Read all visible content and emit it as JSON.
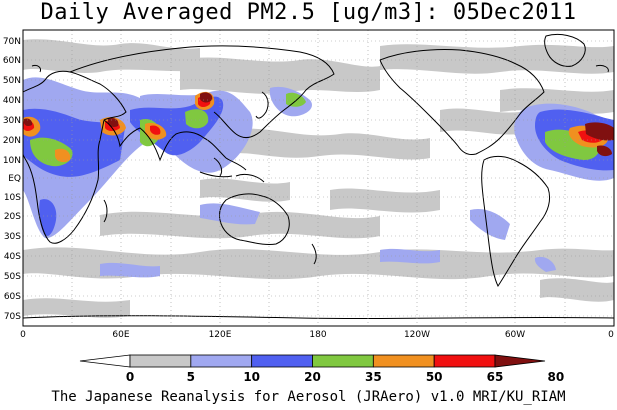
{
  "title": "Daily Averaged PM2.5 [ug/m3]: 05Dec2011",
  "footer": "The Japanese Reanalysis for Aerosol (JRAero) v1.0 MRI/KU_RIAM",
  "lat_labels": [
    "70N",
    "60N",
    "50N",
    "40N",
    "30N",
    "20N",
    "10N",
    "EQ",
    "10S",
    "20S",
    "30S",
    "40S",
    "50S",
    "60S",
    "70S"
  ],
  "lon_labels": [
    "0",
    "60E",
    "120E",
    "180",
    "120W",
    "60W",
    "0"
  ],
  "colorbar": {
    "levels": [
      "0",
      "5",
      "10",
      "20",
      "35",
      "50",
      "65",
      "80"
    ],
    "colors": [
      "#ffffff",
      "#c8c8c8",
      "#a0a8f0",
      "#5060f0",
      "#80c840",
      "#f09020",
      "#f01010",
      "#801010"
    ]
  },
  "colors": {
    "land_outline": "#000000",
    "grid": "#999999"
  }
}
